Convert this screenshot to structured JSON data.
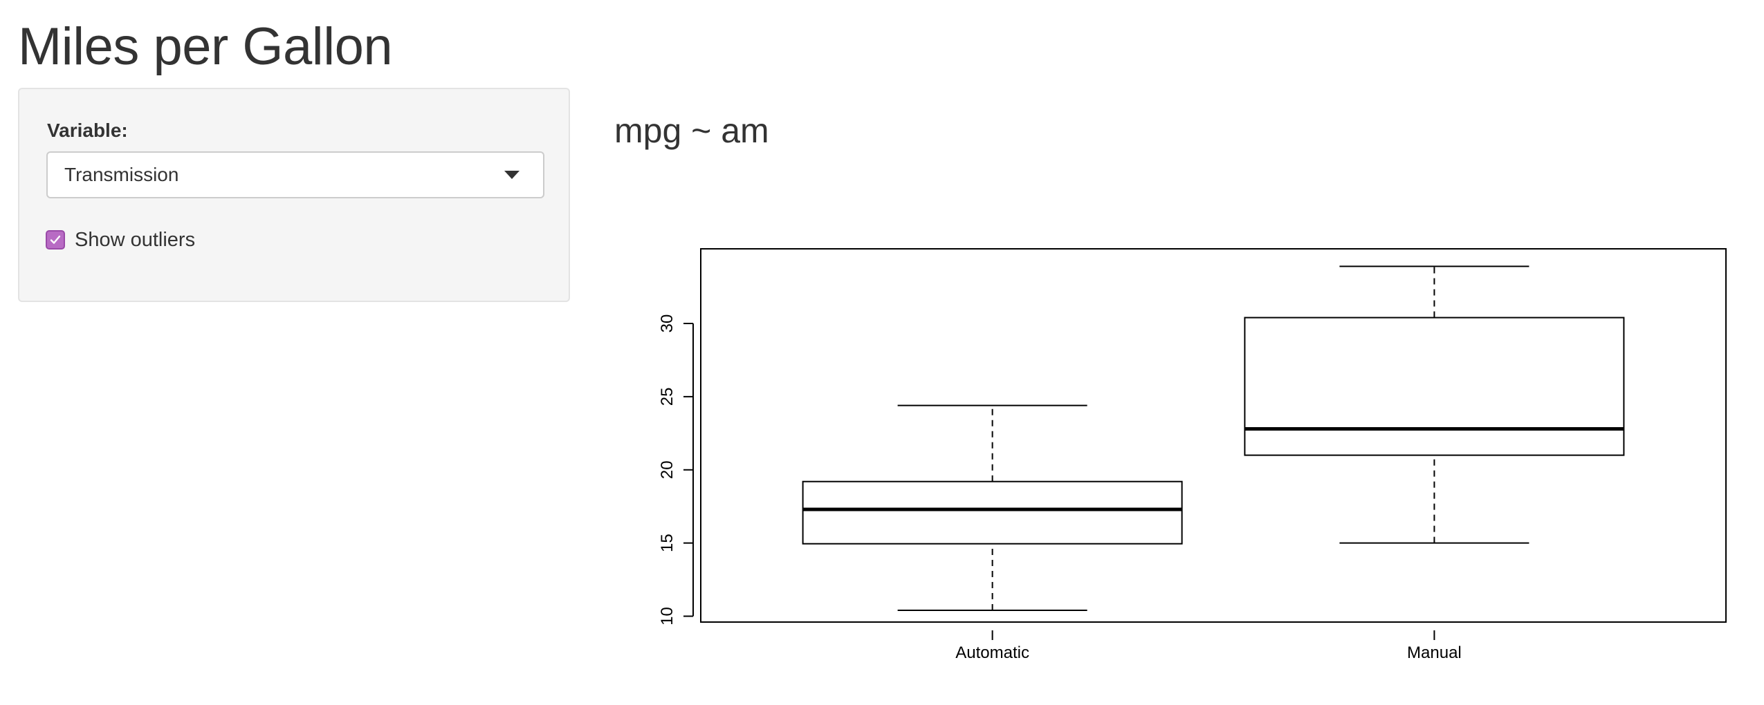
{
  "app": {
    "title": "Miles per Gallon"
  },
  "sidebar": {
    "variable_label": "Variable:",
    "variable_selected": "Transmission",
    "outliers_label": "Show outliers",
    "outliers_checked": true
  },
  "main": {
    "plot_title": "mpg ~ am"
  },
  "colors": {
    "checkbox_accent": "#b86bc4",
    "text": "#333333",
    "panel": "#f5f5f5"
  },
  "chart_data": {
    "type": "boxplot",
    "xlabel": "",
    "ylabel": "",
    "ylim": [
      9.6,
      35.1
    ],
    "yticks": [
      10,
      15,
      20,
      25,
      30
    ],
    "categories": [
      "Automatic",
      "Manual"
    ],
    "boxes": [
      {
        "category": "Automatic",
        "whisker_low": 10.4,
        "q1": 14.95,
        "median": 17.3,
        "q3": 19.2,
        "whisker_high": 24.4
      },
      {
        "category": "Manual",
        "whisker_low": 15.0,
        "q1": 21.0,
        "median": 22.8,
        "q3": 30.4,
        "whisker_high": 33.9
      }
    ],
    "grid": false,
    "legend": "none"
  }
}
